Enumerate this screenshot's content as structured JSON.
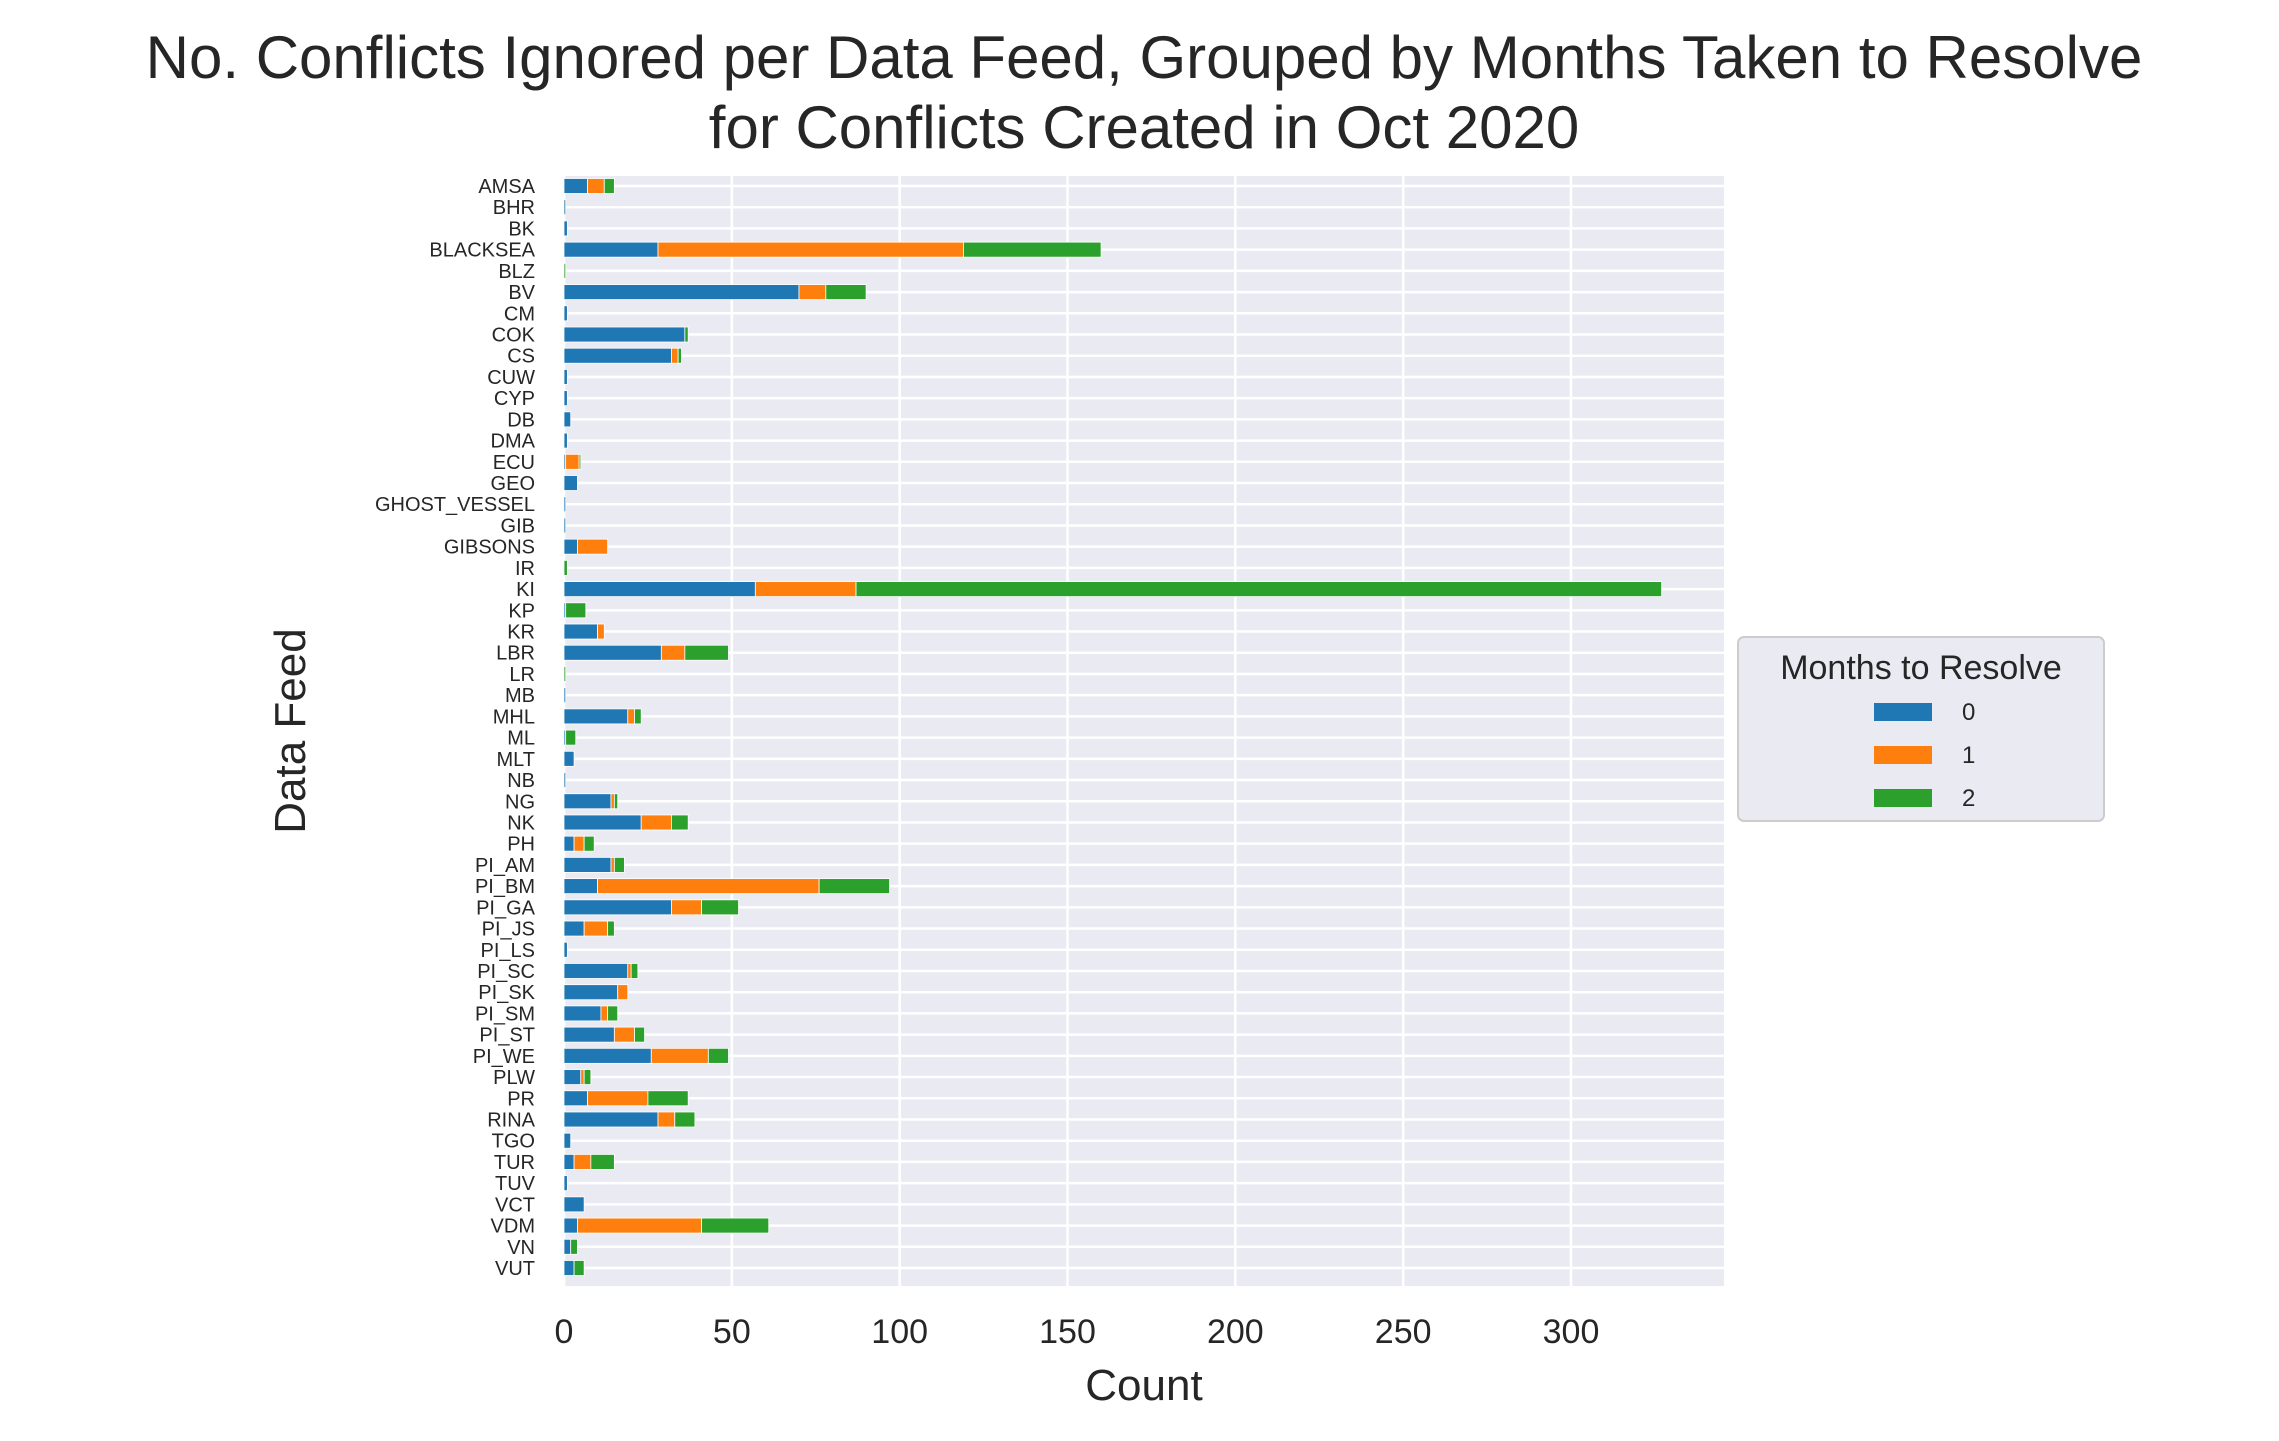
{
  "chart_data": {
    "type": "bar",
    "orientation": "horizontal",
    "stacked": true,
    "title": "No. Conflicts Ignored per Data Feed, Grouped by Months Taken to Resolve",
    "subtitle": "for Conflicts Created in Oct 2020",
    "xlabel": "Count",
    "ylabel": "Data Feed",
    "xlim": [
      0,
      345
    ],
    "xticks": [
      0,
      50,
      100,
      150,
      200,
      250,
      300
    ],
    "grid": true,
    "legend": {
      "title": "Months to Resolve",
      "placement": "center-right, outside plot"
    },
    "categories": [
      "AMSA",
      "BHR",
      "BK",
      "BLACKSEA",
      "BLZ",
      "BV",
      "CM",
      "COK",
      "CS",
      "CUW",
      "CYP",
      "DB",
      "DMA",
      "ECU",
      "GEO",
      "GHOST_VESSEL",
      "GIB",
      "GIBSONS",
      "IR",
      "KI",
      "KP",
      "KR",
      "LBR",
      "LR",
      "MB",
      "MHL",
      "ML",
      "MLT",
      "NB",
      "NG",
      "NK",
      "PH",
      "PI_AM",
      "PI_BM",
      "PI_GA",
      "PI_JS",
      "PI_LS",
      "PI_SC",
      "PI_SK",
      "PI_SM",
      "PI_ST",
      "PI_WE",
      "PLW",
      "PR",
      "RINA",
      "TGO",
      "TUR",
      "TUV",
      "VCT",
      "VDM",
      "VN",
      "VUT"
    ],
    "series": [
      {
        "name": "0",
        "color": "#1f77b4",
        "values": [
          7,
          0.5,
          1,
          28,
          0,
          70,
          1,
          36,
          32,
          1,
          1,
          2,
          1,
          0.5,
          4,
          0.5,
          0.5,
          4,
          0,
          57,
          0.5,
          10,
          29,
          0,
          0.5,
          19,
          0.5,
          3,
          0.5,
          14,
          23,
          3,
          14,
          10,
          32,
          6,
          1,
          19,
          16,
          11,
          15,
          26,
          5,
          7,
          28,
          2,
          3,
          1,
          6,
          4,
          2,
          3
        ]
      },
      {
        "name": "1",
        "color": "#ff7f0e",
        "values": [
          5,
          0,
          0,
          91,
          0,
          8,
          0,
          0,
          2,
          0,
          0,
          0,
          0,
          4,
          0,
          0,
          0,
          9,
          0,
          30,
          0,
          2,
          7,
          0,
          0,
          2,
          0,
          0,
          0,
          1,
          9,
          3,
          1,
          66,
          9,
          7,
          0,
          1,
          3,
          2,
          6,
          17,
          1,
          18,
          5,
          0,
          5,
          0,
          0,
          37,
          0,
          0
        ]
      },
      {
        "name": "2",
        "color": "#2ca02c",
        "values": [
          3,
          0,
          0,
          41,
          0.5,
          12,
          0,
          1,
          1,
          0,
          0,
          0,
          0,
          0.5,
          0,
          0,
          0,
          0,
          1,
          240,
          6,
          0,
          13,
          0.5,
          0,
          2,
          3,
          0,
          0,
          1,
          5,
          3,
          3,
          21,
          11,
          2,
          0,
          2,
          0,
          3,
          3,
          6,
          2,
          12,
          6,
          0,
          7,
          0,
          0,
          20,
          2,
          3
        ]
      }
    ]
  }
}
